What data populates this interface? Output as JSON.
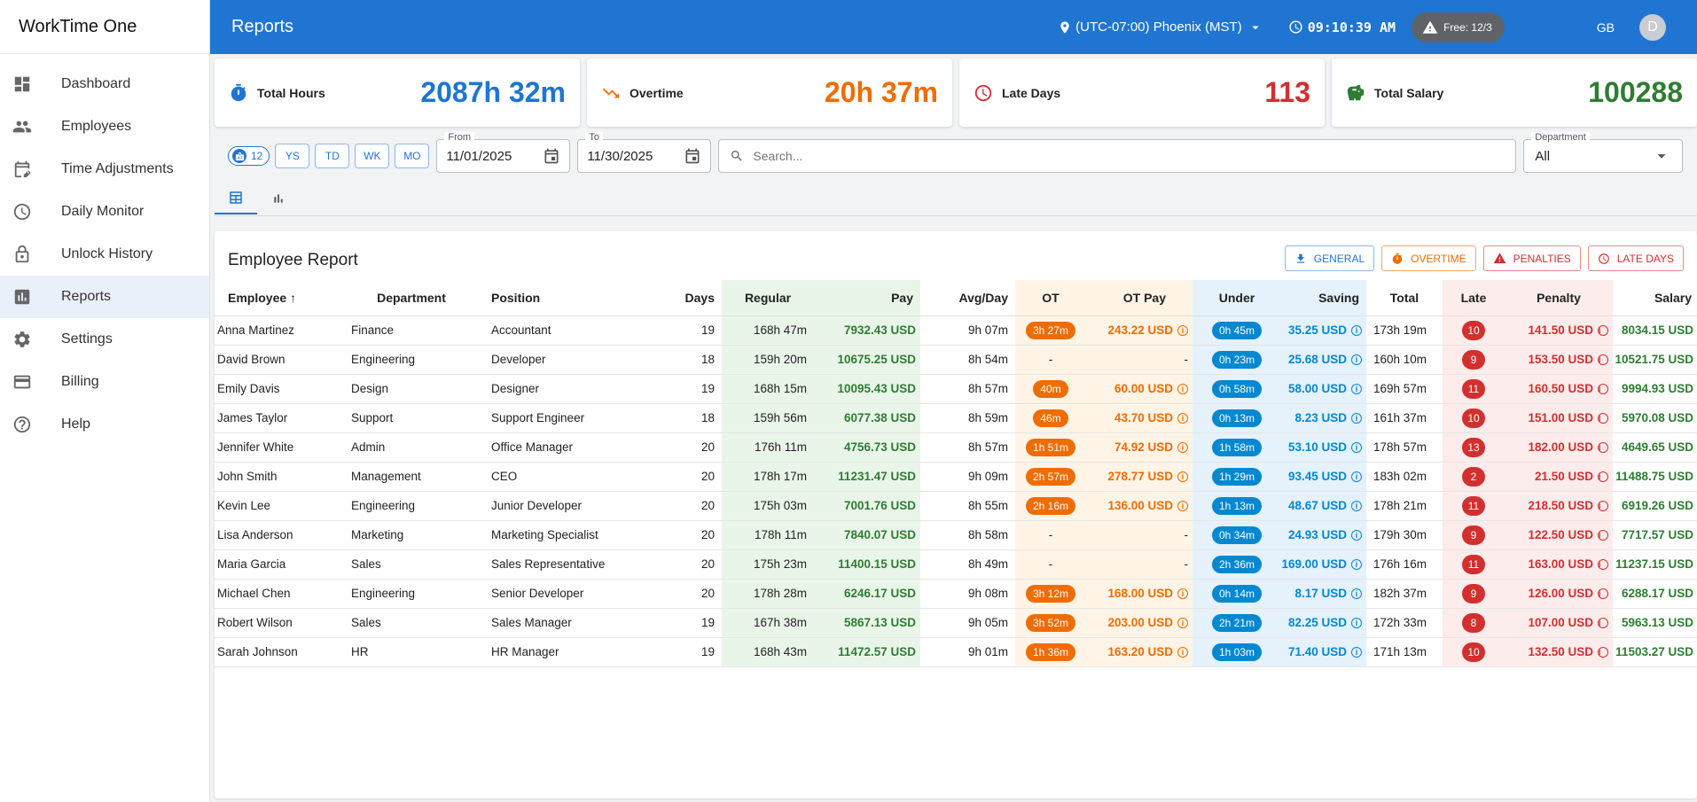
{
  "app": {
    "name": "WorkTime One"
  },
  "sidebar": {
    "items": [
      {
        "label": "Dashboard",
        "icon": "dashboard-icon"
      },
      {
        "label": "Employees",
        "icon": "people-icon"
      },
      {
        "label": "Time Adjustments",
        "icon": "calendar-edit-icon"
      },
      {
        "label": "Daily Monitor",
        "icon": "clock-icon"
      },
      {
        "label": "Unlock History",
        "icon": "lock-icon"
      },
      {
        "label": "Reports",
        "icon": "bar-chart-icon",
        "active": true
      },
      {
        "label": "Settings",
        "icon": "gear-icon"
      },
      {
        "label": "Billing",
        "icon": "credit-card-icon"
      },
      {
        "label": "Help",
        "icon": "help-icon"
      }
    ]
  },
  "header": {
    "title": "Reports",
    "timezone": "(UTC-07:00) Phoenix (MST)",
    "time": "09:10:39 AM",
    "free_badge": "Free: 12/3",
    "initials": "GB",
    "avatar_letter": "D"
  },
  "kpis": [
    {
      "label": "Total Hours",
      "value": "2087h 32m",
      "color": "#1f75d1",
      "icon": "stopwatch-icon"
    },
    {
      "label": "Overtime",
      "value": "20h 37m",
      "color": "#ef6c00",
      "icon": "trend-down-icon"
    },
    {
      "label": "Late Days",
      "value": "113",
      "color": "#d32f2f",
      "icon": "clock-alert-icon"
    },
    {
      "label": "Total Salary",
      "value": "100288",
      "color": "#2e7d32",
      "icon": "piggy-bank-icon"
    }
  ],
  "filters": {
    "employee_count": "12",
    "quick_ranges": [
      "YS",
      "TD",
      "WK",
      "MO"
    ],
    "from_label": "From",
    "from_value": "11/01/2025",
    "to_label": "To",
    "to_value": "11/30/2025",
    "search_placeholder": "Search...",
    "department_label": "Department",
    "department_value": "All"
  },
  "report": {
    "title": "Employee Report",
    "export_buttons": {
      "general": "GENERAL",
      "overtime": "OVERTIME",
      "penalties": "PENALTIES",
      "late_days": "LATE DAYS"
    },
    "columns": [
      "Employee",
      "Department",
      "Position",
      "Days",
      "Regular",
      "Pay",
      "Avg/Day",
      "OT",
      "OT Pay",
      "Under",
      "Saving",
      "Total",
      "Late",
      "Penalty",
      "Salary"
    ],
    "rows": [
      {
        "employee": "Anna Martinez",
        "department": "Finance",
        "position": "Accountant",
        "days": "19",
        "regular": "168h 47m",
        "pay": "7932.43 USD",
        "avg": "9h 07m",
        "ot": "3h 27m",
        "ot_pay": "243.22 USD",
        "under": "0h 45m",
        "saving": "35.25 USD",
        "total": "173h 19m",
        "late": "10",
        "penalty": "141.50 USD",
        "salary": "8034.15 USD"
      },
      {
        "employee": "David Brown",
        "department": "Engineering",
        "position": "Developer",
        "days": "18",
        "regular": "159h 20m",
        "pay": "10675.25 USD",
        "avg": "8h 54m",
        "ot": "-",
        "ot_pay": "-",
        "under": "0h 23m",
        "saving": "25.68 USD",
        "total": "160h 10m",
        "late": "9",
        "penalty": "153.50 USD",
        "salary": "10521.75 USD"
      },
      {
        "employee": "Emily Davis",
        "department": "Design",
        "position": "Designer",
        "days": "19",
        "regular": "168h 15m",
        "pay": "10095.43 USD",
        "avg": "8h 57m",
        "ot": "40m",
        "ot_pay": "60.00 USD",
        "under": "0h 58m",
        "saving": "58.00 USD",
        "total": "169h 57m",
        "late": "11",
        "penalty": "160.50 USD",
        "salary": "9994.93 USD"
      },
      {
        "employee": "James Taylor",
        "department": "Support",
        "position": "Support Engineer",
        "days": "18",
        "regular": "159h 56m",
        "pay": "6077.38 USD",
        "avg": "8h 59m",
        "ot": "46m",
        "ot_pay": "43.70 USD",
        "under": "0h 13m",
        "saving": "8.23 USD",
        "total": "161h 37m",
        "late": "10",
        "penalty": "151.00 USD",
        "salary": "5970.08 USD"
      },
      {
        "employee": "Jennifer White",
        "department": "Admin",
        "position": "Office Manager",
        "days": "20",
        "regular": "176h 11m",
        "pay": "4756.73 USD",
        "avg": "8h 57m",
        "ot": "1h 51m",
        "ot_pay": "74.92 USD",
        "under": "1h 58m",
        "saving": "53.10 USD",
        "total": "178h 57m",
        "late": "13",
        "penalty": "182.00 USD",
        "salary": "4649.65 USD"
      },
      {
        "employee": "John Smith",
        "department": "Management",
        "position": "CEO",
        "days": "20",
        "regular": "178h 17m",
        "pay": "11231.47 USD",
        "avg": "9h 09m",
        "ot": "2h 57m",
        "ot_pay": "278.77 USD",
        "under": "1h 29m",
        "saving": "93.45 USD",
        "total": "183h 02m",
        "late": "2",
        "penalty": "21.50 USD",
        "salary": "11488.75 USD"
      },
      {
        "employee": "Kevin Lee",
        "department": "Engineering",
        "position": "Junior Developer",
        "days": "20",
        "regular": "175h 03m",
        "pay": "7001.76 USD",
        "avg": "8h 55m",
        "ot": "2h 16m",
        "ot_pay": "136.00 USD",
        "under": "1h 13m",
        "saving": "48.67 USD",
        "total": "178h 21m",
        "late": "11",
        "penalty": "218.50 USD",
        "salary": "6919.26 USD"
      },
      {
        "employee": "Lisa Anderson",
        "department": "Marketing",
        "position": "Marketing Specialist",
        "days": "20",
        "regular": "178h 11m",
        "pay": "7840.07 USD",
        "avg": "8h 58m",
        "ot": "-",
        "ot_pay": "-",
        "under": "0h 34m",
        "saving": "24.93 USD",
        "total": "179h 30m",
        "late": "9",
        "penalty": "122.50 USD",
        "salary": "7717.57 USD"
      },
      {
        "employee": "Maria Garcia",
        "department": "Sales",
        "position": "Sales Representative",
        "days": "20",
        "regular": "175h 23m",
        "pay": "11400.15 USD",
        "avg": "8h 49m",
        "ot": "-",
        "ot_pay": "-",
        "under": "2h 36m",
        "saving": "169.00 USD",
        "total": "176h 16m",
        "late": "11",
        "penalty": "163.00 USD",
        "salary": "11237.15 USD"
      },
      {
        "employee": "Michael Chen",
        "department": "Engineering",
        "position": "Senior Developer",
        "days": "20",
        "regular": "178h 28m",
        "pay": "6246.17 USD",
        "avg": "9h 08m",
        "ot": "3h 12m",
        "ot_pay": "168.00 USD",
        "under": "0h 14m",
        "saving": "8.17 USD",
        "total": "182h 37m",
        "late": "9",
        "penalty": "126.00 USD",
        "salary": "6288.17 USD"
      },
      {
        "employee": "Robert Wilson",
        "department": "Sales",
        "position": "Sales Manager",
        "days": "19",
        "regular": "167h 38m",
        "pay": "5867.13 USD",
        "avg": "9h 05m",
        "ot": "3h 52m",
        "ot_pay": "203.00 USD",
        "under": "2h 21m",
        "saving": "82.25 USD",
        "total": "172h 33m",
        "late": "8",
        "penalty": "107.00 USD",
        "salary": "5963.13 USD"
      },
      {
        "employee": "Sarah Johnson",
        "department": "HR",
        "position": "HR Manager",
        "days": "19",
        "regular": "168h 43m",
        "pay": "11472.57 USD",
        "avg": "9h 01m",
        "ot": "1h 36m",
        "ot_pay": "163.20 USD",
        "under": "1h 03m",
        "saving": "71.40 USD",
        "total": "171h 13m",
        "late": "10",
        "penalty": "132.50 USD",
        "salary": "11503.27 USD"
      }
    ]
  }
}
